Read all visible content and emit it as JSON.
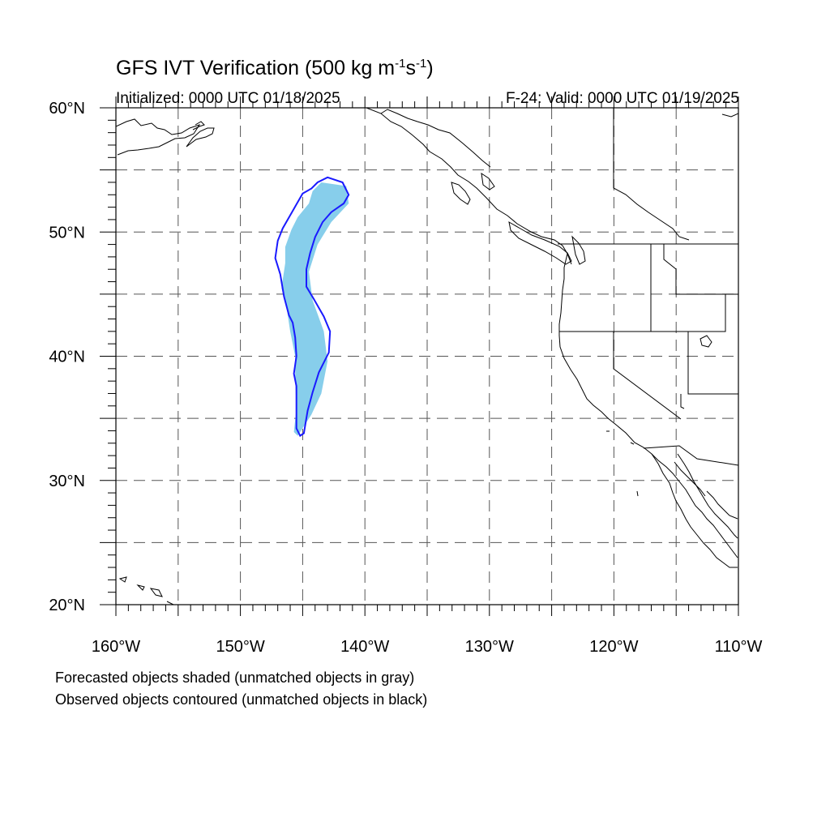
{
  "title": {
    "main": "GFS IVT Verification (500 kg m",
    "sup1": "-1",
    "mid": "s",
    "sup2": "-1",
    "end": ")"
  },
  "subtitle_left": "Initialized: 0000 UTC 01/18/2025",
  "subtitle_right": "F-24: Valid: 0000 UTC 01/19/2025",
  "map": {
    "projection": "cylindrical-equidistant",
    "lon_range": [
      -160,
      -110
    ],
    "lat_range": [
      20,
      60
    ],
    "grid": "dashed every 5 degrees",
    "lat_labels": [
      "20°N",
      "30°N",
      "40°N",
      "50°N",
      "60°N"
    ],
    "lon_labels": [
      "160°W",
      "150°W",
      "140°W",
      "130°W",
      "120°W",
      "110°W"
    ],
    "colors": {
      "forecast_fill": "#87ceeb",
      "observed_contour": "#1a1aff",
      "coastline": "#000000",
      "grid": "#555555"
    }
  },
  "notes": {
    "line1": "Forecasted objects shaded (unmatched objects in gray)",
    "line2": "Observed objects contoured (unmatched objects in black)"
  },
  "chart_data": {
    "type": "map",
    "forecast_object_lonlat": [
      [
        -143.5,
        54.0
      ],
      [
        -141.5,
        53.7
      ],
      [
        -141.3,
        52.3
      ],
      [
        -142.7,
        50.8
      ],
      [
        -143.8,
        49.0
      ],
      [
        -144.5,
        46.8
      ],
      [
        -144.2,
        44.5
      ],
      [
        -143.3,
        42.0
      ],
      [
        -143.0,
        39.6
      ],
      [
        -143.5,
        37.0
      ],
      [
        -144.3,
        35.3
      ],
      [
        -145.4,
        33.6
      ],
      [
        -145.7,
        33.9
      ],
      [
        -145.5,
        35.8
      ],
      [
        -145.6,
        38.0
      ],
      [
        -145.6,
        40.0
      ],
      [
        -146.0,
        42.0
      ],
      [
        -146.3,
        44.0
      ],
      [
        -146.7,
        45.5
      ],
      [
        -146.4,
        47.5
      ],
      [
        -146.4,
        48.8
      ],
      [
        -145.9,
        50.2
      ],
      [
        -145.4,
        51.2
      ],
      [
        -144.5,
        52.3
      ],
      [
        -144.2,
        53.3
      ]
    ],
    "observed_object_lonlat": [
      [
        -143.0,
        54.4
      ],
      [
        -141.8,
        54.0
      ],
      [
        -141.3,
        53.0
      ],
      [
        -141.7,
        52.3
      ],
      [
        -142.7,
        51.6
      ],
      [
        -143.4,
        50.8
      ],
      [
        -144.0,
        49.6
      ],
      [
        -144.4,
        48.3
      ],
      [
        -144.7,
        47.0
      ],
      [
        -144.7,
        45.6
      ],
      [
        -144.1,
        44.6
      ],
      [
        -143.3,
        43.2
      ],
      [
        -142.8,
        42.0
      ],
      [
        -142.9,
        40.3
      ],
      [
        -143.7,
        38.7
      ],
      [
        -144.2,
        37.1
      ],
      [
        -144.6,
        35.6
      ],
      [
        -144.9,
        33.8
      ],
      [
        -145.2,
        33.6
      ],
      [
        -145.5,
        34.2
      ],
      [
        -145.5,
        35.7
      ],
      [
        -145.5,
        37.6
      ],
      [
        -145.7,
        38.6
      ],
      [
        -145.5,
        40.0
      ],
      [
        -145.6,
        41.5
      ],
      [
        -145.8,
        42.7
      ],
      [
        -146.1,
        43.3
      ],
      [
        -146.5,
        44.8
      ],
      [
        -146.8,
        46.6
      ],
      [
        -147.2,
        47.9
      ],
      [
        -147.0,
        49.3
      ],
      [
        -146.6,
        50.3
      ],
      [
        -145.8,
        51.7
      ],
      [
        -145.0,
        53.1
      ],
      [
        -144.3,
        53.5
      ],
      [
        -143.8,
        54.0
      ]
    ]
  }
}
